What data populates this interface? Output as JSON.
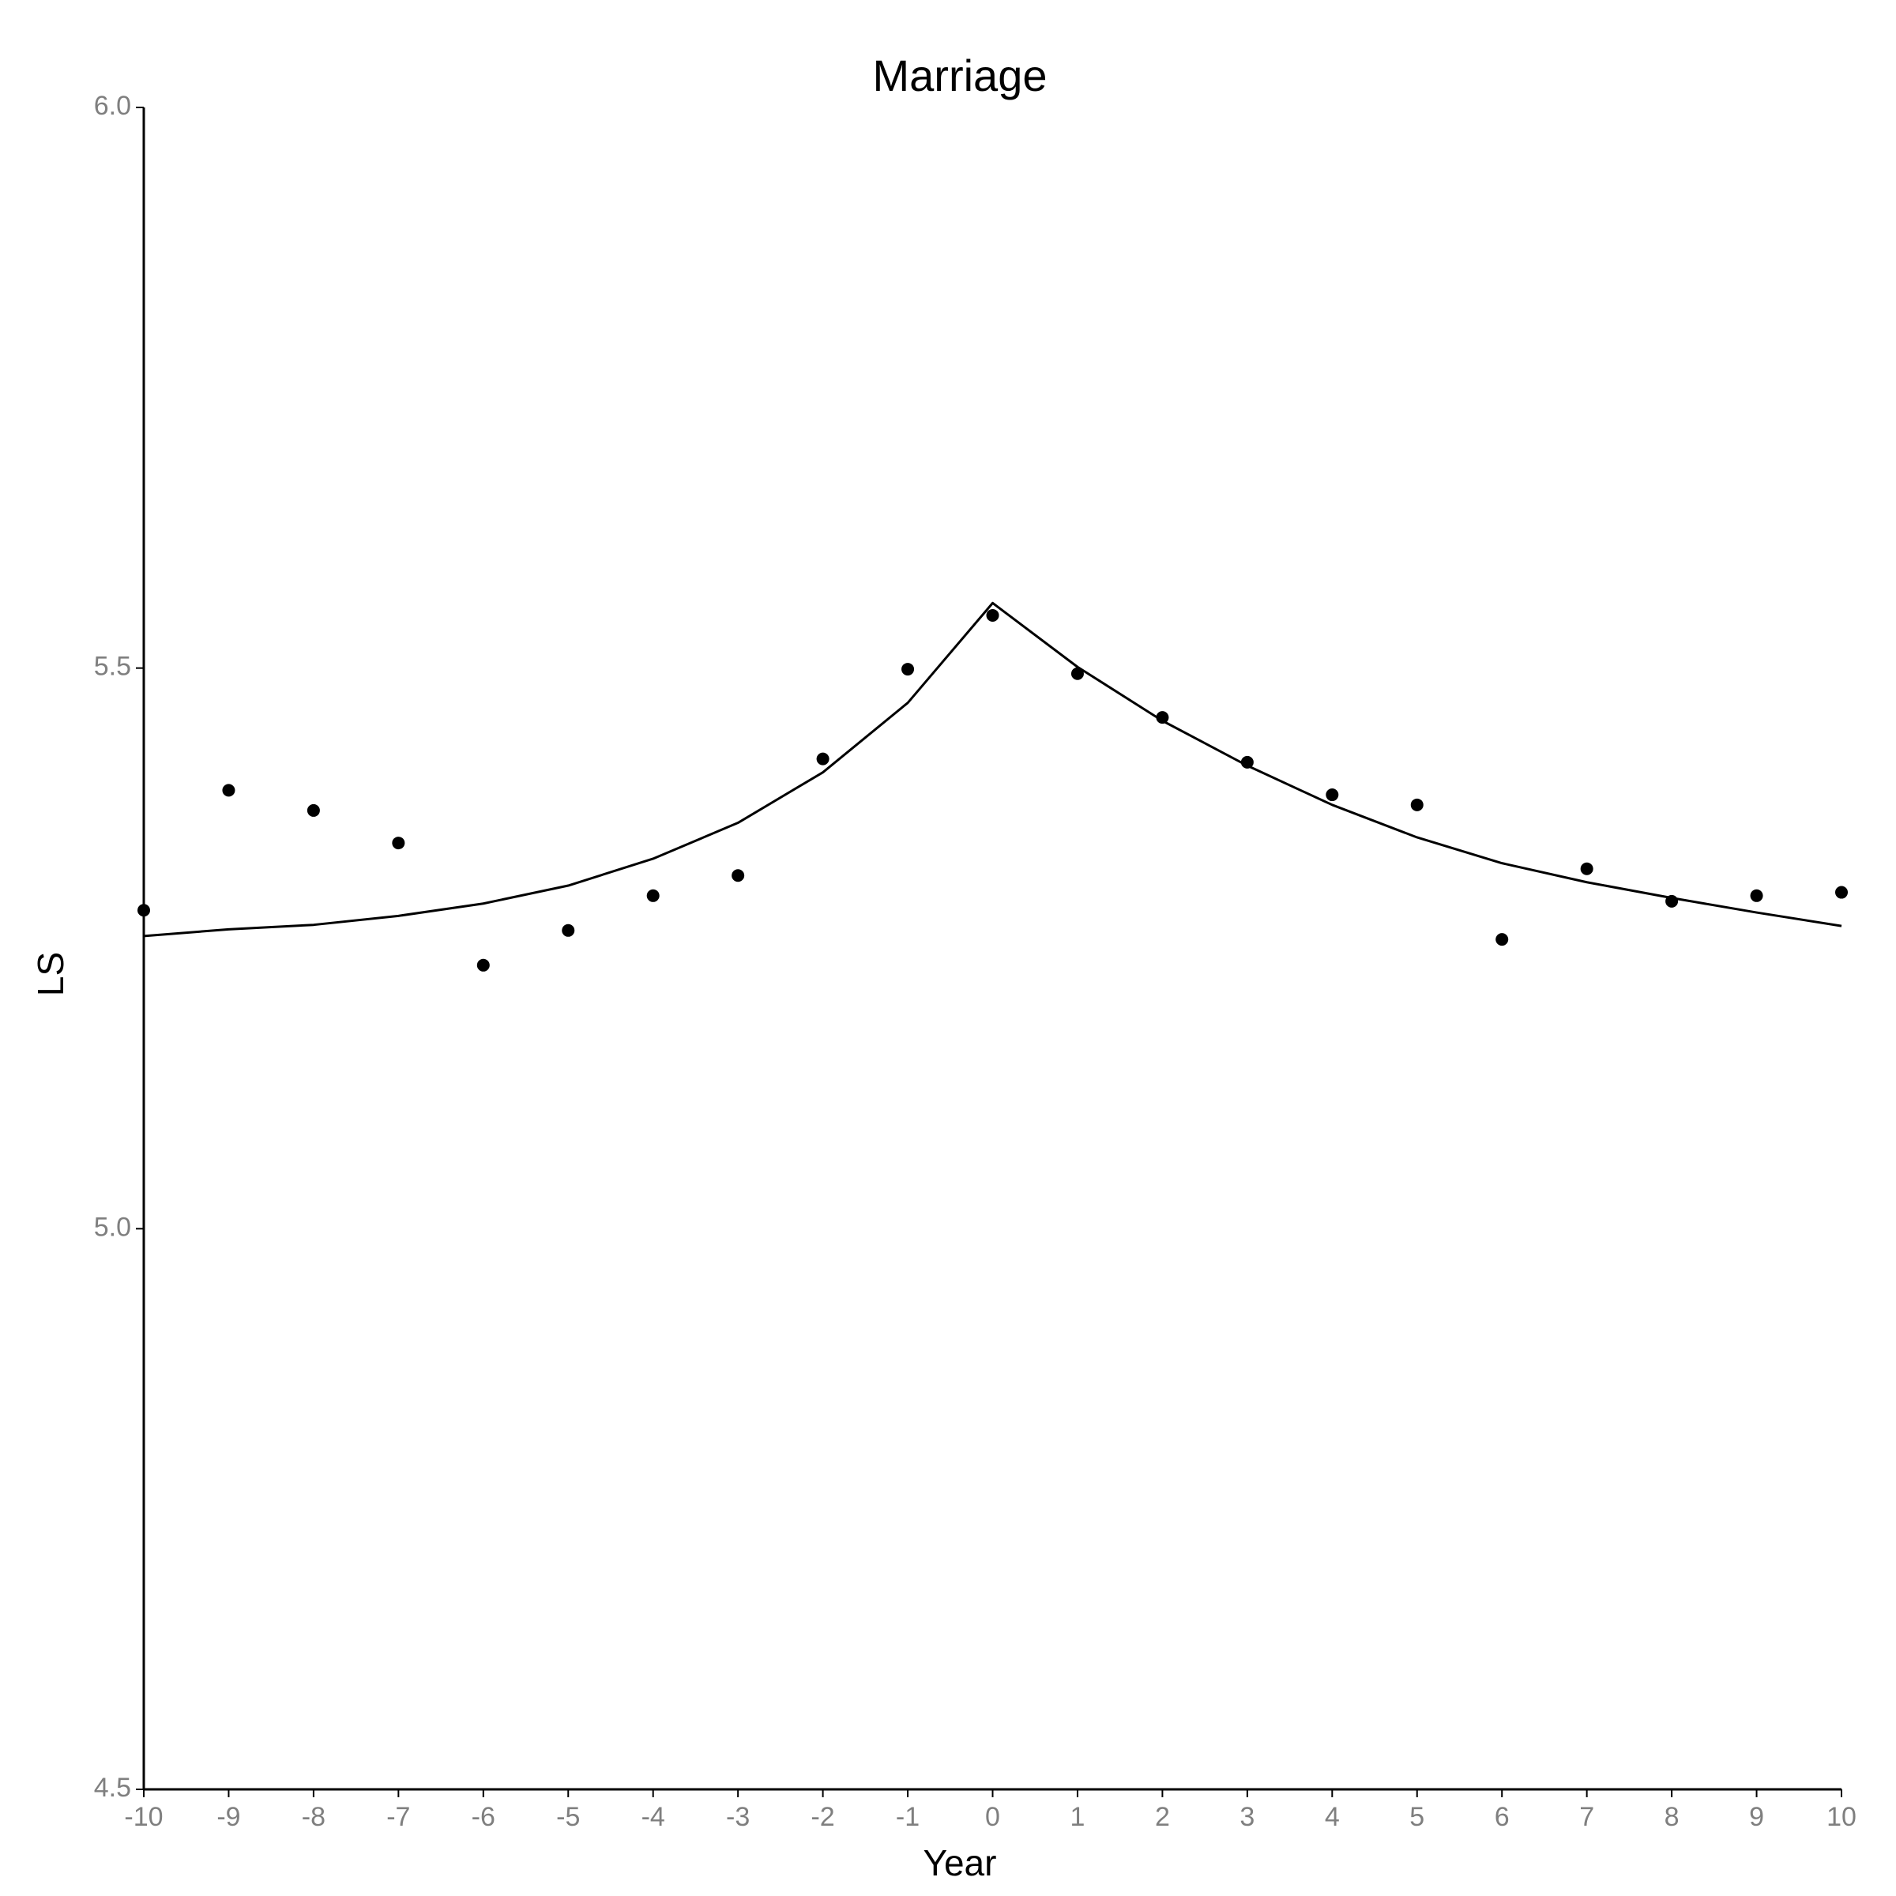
{
  "chart_data": {
    "type": "scatter",
    "title": "Marriage",
    "x_label": "Year",
    "y_label": "LS",
    "x": [
      -10,
      -9,
      -8,
      -7,
      -6,
      -5,
      -4,
      -3,
      -2,
      -1,
      0,
      1,
      2,
      3,
      4,
      5,
      6,
      7,
      8,
      9,
      10
    ],
    "series": [
      {
        "type": "scatter",
        "color": "#000000",
        "values": [
          5.284,
          5.391,
          5.373,
          5.344,
          5.235,
          5.266,
          5.297,
          5.315,
          5.419,
          5.499,
          5.547,
          5.495,
          5.456,
          5.416,
          5.387,
          5.378,
          5.258,
          5.321,
          5.292,
          5.297,
          5.3
        ]
      },
      {
        "type": "line",
        "color": "#000000",
        "values": [
          5.261,
          5.267,
          5.271,
          5.279,
          5.29,
          5.306,
          5.33,
          5.362,
          5.407,
          5.469,
          5.558,
          5.501,
          5.453,
          5.413,
          5.378,
          5.349,
          5.326,
          5.309,
          5.295,
          5.282,
          5.27
        ]
      }
    ],
    "xlim": [
      -10,
      10
    ],
    "xticks": [
      -10,
      -9,
      -8,
      -7,
      -6,
      -5,
      -4,
      -3,
      -2,
      -1,
      0,
      1,
      2,
      3,
      4,
      5,
      6,
      7,
      8,
      9,
      10
    ],
    "ylim": [
      4.5,
      6.0
    ],
    "yticks": [
      4.5,
      {
        "value": 5,
        "label": "5.0"
      },
      5.5,
      {
        "value": 6,
        "label": "6.0"
      }
    ],
    "grid": false
  }
}
